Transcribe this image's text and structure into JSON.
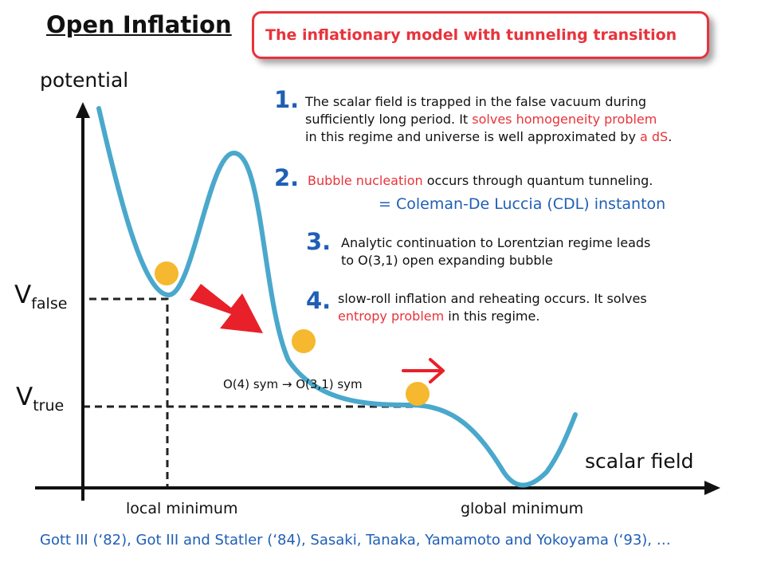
{
  "title": "Open Inflation",
  "banner": "The inflationary model with tunneling transition",
  "axes": {
    "y_label": "potential",
    "x_label": "scalar field"
  },
  "levels": {
    "v_false": {
      "main": "V",
      "sub": "false"
    },
    "v_true": {
      "main": "V",
      "sub": "true"
    }
  },
  "minima": {
    "local": "local minimum",
    "global": "global minimum"
  },
  "steps": [
    {
      "number": "1.",
      "segments": [
        {
          "text": "The scalar field is trapped in the false vacuum during",
          "red": false
        },
        {
          "br": true
        },
        {
          "text": "sufficiently long period. It ",
          "red": false
        },
        {
          "text": "solves homogeneity problem",
          "red": true
        },
        {
          "br": true
        },
        {
          "text": "in this regime and universe is well approximated by ",
          "red": false
        },
        {
          "text": "a dS",
          "red": true
        },
        {
          "text": ".",
          "red": false
        }
      ]
    },
    {
      "number": "2.",
      "segments": [
        {
          "text": "Bubble nucleation",
          "red": true
        },
        {
          "text": " occurs through quantum tunneling.",
          "red": false
        }
      ]
    },
    {
      "number": "3.",
      "segments": [
        {
          "text": "Analytic continuation to Lorentzian regime leads",
          "red": false
        },
        {
          "br": true
        },
        {
          "text": "to O(3,1) open expanding bubble",
          "red": false
        }
      ]
    },
    {
      "number": "4.",
      "segments": [
        {
          "text": "slow-roll inflation and reheating occurs. It solves",
          "red": false
        },
        {
          "br": true
        },
        {
          "text": "entropy problem",
          "red": true
        },
        {
          "text": " in this regime.",
          "red": false
        }
      ]
    }
  ],
  "cdl_note": "= Coleman-De Luccia (CDL) instanton",
  "symmetry_note": "O(4) sym → O(3,1) sym",
  "references": "Gott III (‘82), Got III and Statler (‘84),  Sasaki, Tanaka, Yamamoto and Yokoyama (‘93), …",
  "colors": {
    "curve": "#4aa8cc",
    "ball": "#f5b82e",
    "arrow": "#e8202a",
    "accent_red": "#e8333b",
    "blue_text": "#1f5fb6"
  }
}
